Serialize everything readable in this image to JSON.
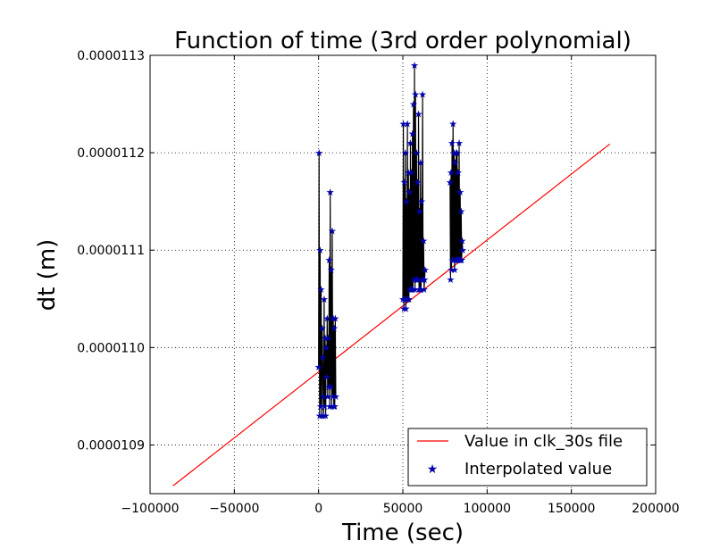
{
  "chart_data": {
    "type": "line",
    "title": "Function of time (3rd order polynomial)",
    "xlabel": "Time (sec)",
    "ylabel": "dt (m)",
    "xlim": [
      -100000,
      200000
    ],
    "ylim": [
      1.085e-05,
      1.13e-05
    ],
    "xticks": [
      -100000,
      -50000,
      0,
      50000,
      100000,
      150000,
      200000
    ],
    "xtick_labels": [
      "−100000",
      "−50000",
      "0",
      "50000",
      "100000",
      "150000",
      "200000"
    ],
    "yticks": [
      1.09e-05,
      1.1e-05,
      1.11e-05,
      1.12e-05,
      1.13e-05
    ],
    "ytick_labels": [
      "0.0000109",
      "0.0000110",
      "0.0000111",
      "0.0000112",
      "0.0000113"
    ],
    "grid": true,
    "legend_position": "lower-right",
    "series": [
      {
        "name": "Value in clk_30s file",
        "kind": "line",
        "color": "#ff0000",
        "x": [
          -86400,
          172800
        ],
        "y": [
          1.0858e-05,
          1.1209e-05
        ]
      },
      {
        "name": "Interpolated value",
        "kind": "scatter",
        "marker": "star",
        "color": "#0000aa",
        "x": [
          0,
          300,
          600,
          900,
          1200,
          1500,
          1800,
          2100,
          2400,
          2700,
          3000,
          3300,
          3600,
          3900,
          4200,
          4500,
          4800,
          5100,
          5400,
          5700,
          6000,
          6300,
          6600,
          6900,
          7200,
          7500,
          7800,
          8100,
          8400,
          8700,
          9000,
          9300,
          9600,
          9900,
          10200,
          50000,
          50300,
          50600,
          50900,
          51200,
          51500,
          51800,
          52100,
          52400,
          52700,
          53000,
          53300,
          53600,
          53900,
          54200,
          54500,
          54800,
          55100,
          55400,
          55700,
          56000,
          56300,
          56600,
          56900,
          57200,
          57500,
          57800,
          58100,
          58400,
          58700,
          59000,
          59300,
          59600,
          59900,
          60200,
          60500,
          60800,
          61100,
          61400,
          61700,
          62000,
          62300,
          62600,
          62900,
          63200,
          78000,
          78300,
          78600,
          78900,
          79200,
          79500,
          79800,
          80100,
          80400,
          80700,
          81000,
          81300,
          81600,
          81900,
          82200,
          82500,
          82800,
          83100,
          83400,
          83700,
          84000,
          84300,
          84600,
          84900,
          85200,
          85500
        ],
        "y": [
          1.098e-05,
          1.12e-05,
          1.093e-05,
          1.11e-05,
          1.094e-05,
          1.106e-05,
          1.093e-05,
          1.102e-05,
          1.099e-05,
          1.095e-05,
          1.093e-05,
          1.105e-05,
          1.094e-05,
          1.101e-05,
          1.093e-05,
          1.1e-05,
          1.097e-05,
          1.103e-05,
          1.095e-05,
          1.101e-05,
          1.096e-05,
          1.109e-05,
          1.094e-05,
          1.116e-05,
          1.096e-05,
          1.108e-05,
          1.094e-05,
          1.112e-05,
          1.095e-05,
          1.103e-05,
          1.094e-05,
          1.102e-05,
          1.094e-05,
          1.103e-05,
          1.095e-05,
          1.105e-05,
          1.123e-05,
          1.104e-05,
          1.117e-05,
          1.105e-05,
          1.12e-05,
          1.104e-05,
          1.115e-05,
          1.105e-05,
          1.123e-05,
          1.105e-05,
          1.118e-05,
          1.105e-05,
          1.116e-05,
          1.106e-05,
          1.121e-05,
          1.106e-05,
          1.118e-05,
          1.106e-05,
          1.122e-05,
          1.106e-05,
          1.125e-05,
          1.107e-05,
          1.129e-05,
          1.106e-05,
          1.126e-05,
          1.107e-05,
          1.12e-05,
          1.107e-05,
          1.117e-05,
          1.107e-05,
          1.124e-05,
          1.106e-05,
          1.114e-05,
          1.106e-05,
          1.119e-05,
          1.106e-05,
          1.115e-05,
          1.107e-05,
          1.126e-05,
          1.107e-05,
          1.111e-05,
          1.106e-05,
          1.107e-05,
          1.108e-05,
          1.117e-05,
          1.107e-05,
          1.118e-05,
          1.108e-05,
          1.121e-05,
          1.109e-05,
          1.123e-05,
          1.109e-05,
          1.12e-05,
          1.108e-05,
          1.119e-05,
          1.109e-05,
          1.12e-05,
          1.109e-05,
          1.12e-05,
          1.109e-05,
          1.118e-05,
          1.109e-05,
          1.121e-05,
          1.109e-05,
          1.116e-05,
          1.109e-05,
          1.114e-05,
          1.109e-05,
          1.111e-05,
          1.11e-05
        ]
      }
    ]
  }
}
